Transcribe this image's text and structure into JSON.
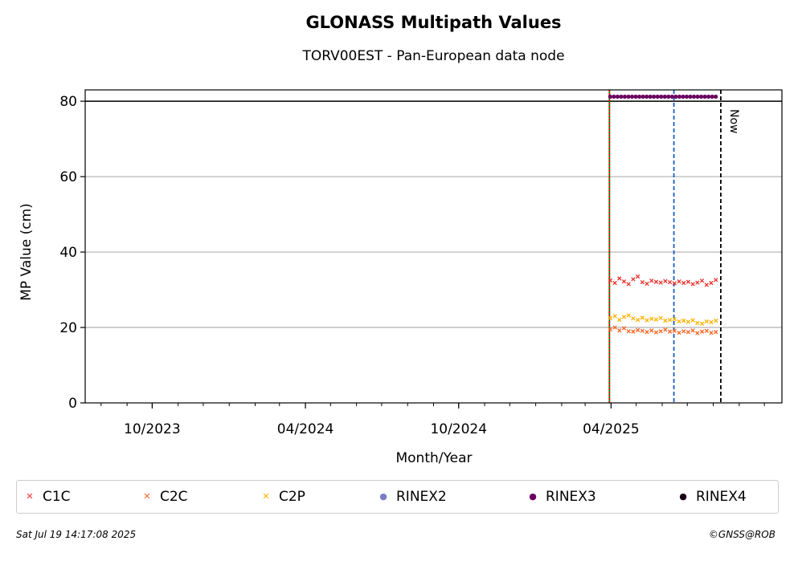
{
  "chart_data": {
    "type": "scatter",
    "title": "GLONASS Multipath Values",
    "subtitle": "TORV00EST - Pan-European data node",
    "xlabel": "Month/Year",
    "ylabel": "MP Value (cm)",
    "xlim": [
      "2023-07-13",
      "2025-10-22"
    ],
    "ylim": [
      0,
      83
    ],
    "yticks": [
      0,
      20,
      40,
      60,
      80
    ],
    "xticks": [
      {
        "date": "2023-10-01",
        "label": "10/2023"
      },
      {
        "date": "2024-04-01",
        "label": "04/2024"
      },
      {
        "date": "2024-10-01",
        "label": "10/2024"
      },
      {
        "date": "2025-04-01",
        "label": "04/2025"
      }
    ],
    "grid": "horizontal",
    "reference_lines": [
      {
        "type": "horizontal",
        "y": 80,
        "color": "#000000",
        "style": "solid"
      },
      {
        "type": "vertical",
        "date": "2025-03-30",
        "color": "#008000",
        "style": "solid"
      },
      {
        "type": "vertical",
        "date": "2025-03-30",
        "color": "#ff0000",
        "style": "dotted"
      },
      {
        "type": "vertical",
        "date": "2025-06-15",
        "color": "#1f5fbf",
        "style": "dashed"
      },
      {
        "type": "vertical",
        "date": "2025-08-10",
        "color": "#000000",
        "style": "dashed",
        "label": "Now"
      }
    ],
    "series": [
      {
        "name": "C1C",
        "marker": "x",
        "color": "#e8302a",
        "start": "2025-03-31",
        "end": "2025-08-04",
        "values": [
          32.5,
          31.8,
          33.0,
          32.2,
          31.5,
          32.8,
          33.5,
          32.0,
          31.6,
          32.4,
          32.1,
          31.9,
          32.3,
          32.0,
          31.7,
          32.2,
          31.8,
          32.1,
          31.5,
          31.9,
          32.4,
          31.3,
          31.8,
          32.6
        ]
      },
      {
        "name": "C2C",
        "marker": "x",
        "color": "#f26522",
        "start": "2025-03-31",
        "end": "2025-08-04",
        "values": [
          19.5,
          20.0,
          19.2,
          19.8,
          19.0,
          18.9,
          19.3,
          19.1,
          18.8,
          19.2,
          18.7,
          19.0,
          19.4,
          18.9,
          19.1,
          18.6,
          19.0,
          18.8,
          19.2,
          18.5,
          18.9,
          19.1,
          18.6,
          18.8
        ]
      },
      {
        "name": "C2P",
        "marker": "x",
        "color": "#ffb000",
        "start": "2025-03-31",
        "end": "2025-08-04",
        "values": [
          22.5,
          23.0,
          22.0,
          22.8,
          23.2,
          22.4,
          22.0,
          22.6,
          21.9,
          22.3,
          22.1,
          22.5,
          21.8,
          22.0,
          22.2,
          21.6,
          21.8,
          21.5,
          21.9,
          21.2,
          21.0,
          21.6,
          21.4,
          21.8
        ]
      },
      {
        "name": "RINEX2",
        "marker": "o",
        "color": "#7d7dc4",
        "values": []
      },
      {
        "name": "RINEX3",
        "marker": "o",
        "color": "#6a0060",
        "start": "2025-03-31",
        "end": "2025-08-04",
        "values": [
          81.2,
          81.2,
          81.2,
          81.2,
          81.2,
          81.2,
          81.2,
          81.2,
          81.2,
          81.2,
          81.2,
          81.2,
          81.2,
          81.2,
          81.2,
          81.2,
          81.2,
          81.2,
          81.2,
          81.2,
          81.2,
          81.2,
          81.2,
          81.2,
          81.2,
          81.2,
          81.2,
          81.2,
          81.2,
          81.2
        ]
      },
      {
        "name": "RINEX4",
        "marker": "o",
        "color": "#1a0018",
        "values": []
      }
    ],
    "legend": "bottom"
  },
  "footer": {
    "timestamp": "Sat Jul 19 14:17:08 2025",
    "credit": "©GNSS@ROB"
  }
}
